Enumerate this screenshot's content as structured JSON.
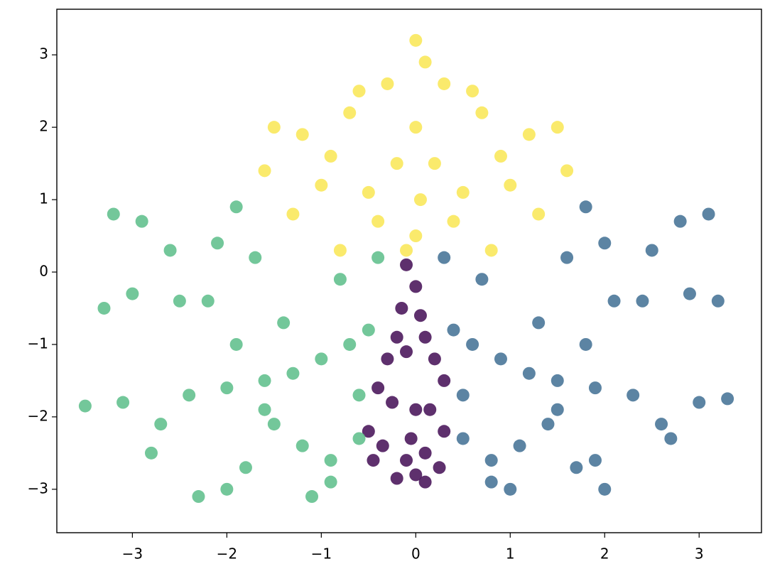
{
  "chart_data": {
    "type": "scatter",
    "xlim": [
      -3.8,
      3.66
    ],
    "ylim": [
      -3.6,
      3.63
    ],
    "xticks": [
      {
        "value": -3,
        "label": "−3"
      },
      {
        "value": -2,
        "label": "−2"
      },
      {
        "value": -1,
        "label": "−1"
      },
      0,
      1,
      2,
      3
    ],
    "yticks": [
      {
        "value": -3,
        "label": "−3"
      },
      {
        "value": -2,
        "label": "−2"
      },
      {
        "value": -1,
        "label": "−1"
      },
      0,
      1,
      2,
      3
    ],
    "grid": false,
    "series": [
      {
        "color": "#4d1a5d",
        "x": [
          -0.1,
          0.0,
          -0.15,
          0.05,
          -0.2,
          0.1,
          -0.1,
          -0.3,
          0.2,
          -0.4,
          0.3,
          -0.25,
          0.0,
          0.15,
          -0.5,
          0.3,
          -0.35,
          0.1,
          -0.1,
          -0.45,
          0.25,
          0.0,
          -0.2,
          0.1,
          -0.05
        ],
        "values": [
          0.1,
          -0.2,
          -0.5,
          -0.6,
          -0.9,
          -0.9,
          -1.1,
          -1.2,
          -1.2,
          -1.6,
          -1.5,
          -1.8,
          -1.9,
          -1.9,
          -2.2,
          -2.2,
          -2.4,
          -2.5,
          -2.6,
          -2.6,
          -2.7,
          -2.8,
          -2.85,
          -2.9,
          -2.3
        ]
      },
      {
        "color": "#4a7799",
        "x": [
          3.1,
          2.8,
          2.5,
          3.2,
          2.9,
          2.4,
          2.1,
          1.8,
          2.0,
          1.6,
          3.3,
          3.0,
          2.6,
          2.3,
          1.9,
          1.5,
          1.2,
          0.9,
          0.6,
          0.4,
          1.4,
          1.1,
          0.8,
          0.5,
          2.0,
          1.9,
          1.7,
          1.0,
          0.8,
          1.3,
          0.7,
          0.3,
          1.8,
          2.7,
          1.5,
          0.5
        ],
        "values": [
          0.8,
          0.7,
          0.3,
          -0.4,
          -0.3,
          -0.4,
          -0.4,
          0.9,
          0.4,
          0.2,
          -1.75,
          -1.8,
          -2.1,
          -1.7,
          -1.6,
          -1.5,
          -1.4,
          -1.2,
          -1.0,
          -0.8,
          -2.1,
          -2.4,
          -2.6,
          -2.3,
          -3.0,
          -2.6,
          -2.7,
          -3.0,
          -2.9,
          -0.7,
          -0.1,
          0.2,
          -1.0,
          -2.3,
          -1.9,
          -1.7
        ]
      },
      {
        "color": "#64c18f",
        "x": [
          -3.2,
          -2.9,
          -2.6,
          -3.3,
          -3.0,
          -2.5,
          -2.2,
          -1.9,
          -2.1,
          -1.7,
          -3.5,
          -3.1,
          -2.7,
          -2.4,
          -2.0,
          -1.6,
          -1.3,
          -1.0,
          -0.7,
          -0.5,
          -1.5,
          -1.2,
          -0.9,
          -0.6,
          -2.3,
          -2.0,
          -1.8,
          -1.1,
          -0.9,
          -1.4,
          -0.8,
          -0.4,
          -1.9,
          -2.8,
          -1.6,
          -0.6
        ],
        "values": [
          0.8,
          0.7,
          0.3,
          -0.5,
          -0.3,
          -0.4,
          -0.4,
          0.9,
          0.4,
          0.2,
          -1.85,
          -1.8,
          -2.1,
          -1.7,
          -1.6,
          -1.5,
          -1.4,
          -1.2,
          -1.0,
          -0.8,
          -2.1,
          -2.4,
          -2.6,
          -2.3,
          -3.1,
          -3.0,
          -2.7,
          -3.1,
          -2.9,
          -0.7,
          -0.1,
          0.2,
          -1.0,
          -2.5,
          -1.9,
          -1.7
        ]
      },
      {
        "color": "#fae85c",
        "x": [
          0,
          0.1,
          -0.3,
          0.3,
          -0.6,
          0.6,
          -0.7,
          0.7,
          -1.5,
          1.5,
          -1.2,
          1.2,
          -1.6,
          1.6,
          -0.9,
          0.9,
          0,
          -0.2,
          0.2,
          -0.5,
          0.5,
          -1.0,
          1.0,
          -0.4,
          0.4,
          -0.8,
          0.8,
          -1.3,
          1.3,
          0,
          0.05,
          -0.1
        ],
        "values": [
          3.2,
          2.9,
          2.6,
          2.6,
          2.5,
          2.5,
          2.2,
          2.2,
          2.0,
          2.0,
          1.9,
          1.9,
          1.4,
          1.4,
          1.6,
          1.6,
          2.0,
          1.5,
          1.5,
          1.1,
          1.1,
          1.2,
          1.2,
          0.7,
          0.7,
          0.3,
          0.3,
          0.8,
          0.8,
          0.5,
          1.0,
          0.3
        ]
      }
    ]
  }
}
